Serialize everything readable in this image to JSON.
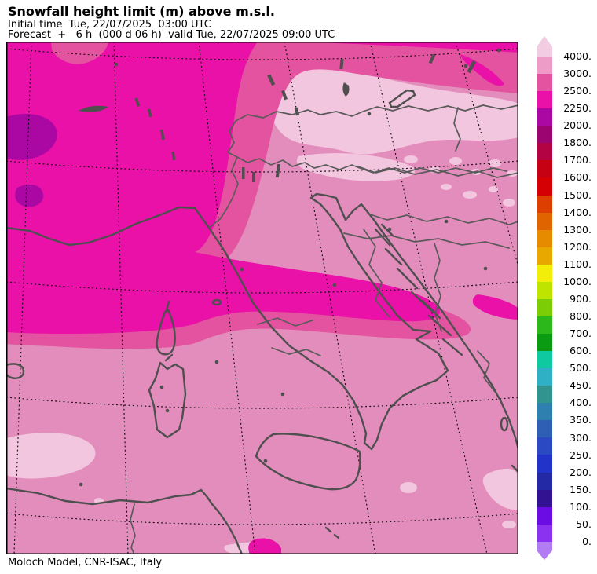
{
  "header": {
    "title": "Snowfall height limit (m) above m.s.l.",
    "initial_time_line": "Initial time  Tue, 22/07/2025  03:00 UTC",
    "forecast_line": "Forecast  +   6 h  (000 d 06 h)  valid Tue, 22/07/2025 09:00 UTC"
  },
  "footer": {
    "credit": "Moloch Model, CNR-ISAC, Italy"
  },
  "colorbar": {
    "unit": "m",
    "labels": [
      "4000.",
      "3000.",
      "2500.",
      "2250.",
      "2000.",
      "1800.",
      "1700.",
      "1600.",
      "1500.",
      "1400.",
      "1300.",
      "1200.",
      "1100.",
      "1000.",
      "900.",
      "800.",
      "700.",
      "600.",
      "500.",
      "450.",
      "400.",
      "350.",
      "300.",
      "250.",
      "200.",
      "150.",
      "100.",
      "50.",
      "0."
    ],
    "segment_colors": [
      "#ec9cc6",
      "#e4539f",
      "#e911a7",
      "#ab07a3",
      "#9c0472",
      "#b30343",
      "#c70114",
      "#d40004",
      "#dd3f00",
      "#e06400",
      "#e68a00",
      "#e8a800",
      "#f2ee0a",
      "#bfe400",
      "#7ccc06",
      "#2cb81b",
      "#0b9b13",
      "#0fc9a1",
      "#2fb0c4",
      "#31948e",
      "#2e80ae",
      "#2f5fb5",
      "#2b49c3",
      "#2133c9",
      "#2329a5",
      "#331292",
      "#6b0ce4",
      "#8b32f0"
    ],
    "arrow_top_color": "#f2cce2",
    "arrow_bottom_color": "#b27df2"
  },
  "map": {
    "colors": {
      "bg_3000_4000": "#e38dbc",
      "above_4000": "#f2c6de",
      "band_2500_3000": "#e4539f",
      "band_2250_2500": "#e911a7",
      "patch_2000_2250": "#ab07a3",
      "coast": "#4f4f4f",
      "border": "#5a5a5a",
      "grid": "#0a0a0a",
      "frame": "#000000"
    }
  }
}
